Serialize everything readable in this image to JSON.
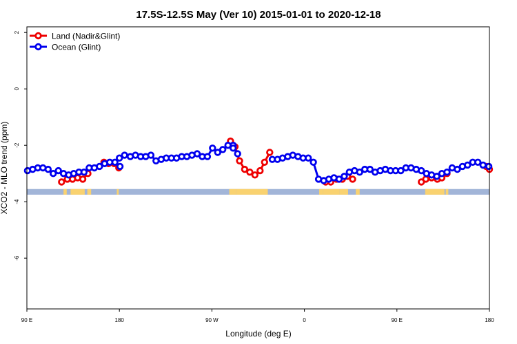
{
  "chart_data": {
    "type": "line",
    "title": "17.5S-12.5S May (Ver 10)   2015-01-01 to 2020-12-18",
    "xlabel": "Longitude (deg E)",
    "ylabel": "XCO2 - MLO trend (ppm)",
    "xlim": [
      90,
      450
    ],
    "ylim": [
      -7.8,
      2.2
    ],
    "x_ticks": [
      {
        "value": 90,
        "label": "90 E"
      },
      {
        "value": 162,
        "label": "180"
      },
      {
        "value": 234,
        "label": "90 W"
      },
      {
        "value": 306,
        "label": "0"
      },
      {
        "value": 378,
        "label": "90 E"
      },
      {
        "value": 450,
        "label": "180"
      }
    ],
    "y_ticks": [
      {
        "value": 2,
        "label": "2"
      },
      {
        "value": 0,
        "label": "0"
      },
      {
        "value": -2,
        "label": "-2"
      },
      {
        "value": -4,
        "label": "-4"
      },
      {
        "value": -6,
        "label": "-6"
      }
    ],
    "legend_position": "top-left",
    "series": [
      {
        "name": "Land (Nadir&Glint)",
        "color": "#ee0000",
        "segments": [
          {
            "x": [
              117.0,
              121.5,
              125.5,
              129.5,
              133.5,
              137.5
            ],
            "y": [
              -3.3,
              -3.2,
              -3.2,
              -3.15,
              -3.2,
              -3.0
            ]
          },
          {
            "x": [
              150.0,
              153.5,
              158.0,
              161.5
            ],
            "y": [
              -2.6,
              -2.65,
              -2.65,
              -2.8
            ]
          },
          {
            "x": [
              248.5,
              252.0,
              255.5,
              259.5,
              263.5,
              267.5,
              271.5,
              275.0,
              279.0
            ],
            "y": [
              -1.85,
              -2.05,
              -2.55,
              -2.85,
              -2.95,
              -3.05,
              -2.9,
              -2.6,
              -2.25
            ]
          },
          {
            "x": [
              322.5,
              326.5,
              331.0,
              335.5,
              339.5,
              343.5
            ],
            "y": [
              -3.3,
              -3.3,
              -3.2,
              -3.2,
              -3.1,
              -3.2
            ]
          },
          {
            "x": [
              397.0,
              400.5,
              405.0,
              409.5,
              413.0,
              417.0
            ],
            "y": [
              -3.3,
              -3.2,
              -3.15,
              -3.2,
              -3.15,
              -3.0
            ]
          },
          {
            "x": [
              447.5,
              450.0
            ],
            "y": [
              -2.75,
              -2.85
            ]
          }
        ]
      },
      {
        "name": "Ocean (Glint)",
        "color": "#0000ee",
        "segments": [
          {
            "x": [
              90.5,
              94.5,
              98.5,
              102.5,
              106.5,
              110.5,
              114.5,
              118.5,
              122.5,
              126.5,
              130.5,
              134.5,
              138.5,
              142.5,
              146.5,
              150.5,
              154.5,
              158.5,
              162.5
            ],
            "y": [
              -2.9,
              -2.85,
              -2.8,
              -2.8,
              -2.85,
              -3.0,
              -2.9,
              -3.0,
              -3.05,
              -3.0,
              -2.95,
              -2.95,
              -2.8,
              -2.8,
              -2.75,
              -2.65,
              -2.6,
              -2.6,
              -2.75
            ]
          },
          {
            "x": [
              162.0,
              166.0,
              170.5,
              174.5,
              178.5,
              182.5,
              186.5,
              190.5,
              194.5,
              198.5,
              202.5,
              206.5,
              210.5,
              214.5,
              218.5,
              222.5,
              226.5,
              230.5,
              234.5,
              238.5,
              242.5,
              246.5,
              250.5
            ],
            "y": [
              -2.45,
              -2.35,
              -2.4,
              -2.35,
              -2.4,
              -2.4,
              -2.35,
              -2.55,
              -2.5,
              -2.45,
              -2.45,
              -2.45,
              -2.4,
              -2.4,
              -2.35,
              -2.3,
              -2.4,
              -2.4,
              -2.1,
              -2.25,
              -2.15,
              -2.0,
              -2.0
            ]
          },
          {
            "x": [
              250.5,
              254.0
            ],
            "y": [
              -2.1,
              -2.3
            ]
          },
          {
            "x": [
              281.0,
              285.0,
              289.0,
              293.0,
              297.0,
              301.0,
              305.0,
              309.0,
              313.0,
              317.0,
              321.0,
              325.0,
              329.0,
              333.0,
              337.0,
              341.0,
              345.0,
              349.0,
              353.0,
              357.0,
              361.0,
              365.0,
              369.0,
              373.0,
              377.0,
              381.0,
              385.0,
              389.0,
              393.0,
              397.0,
              401.0,
              405.0,
              409.0,
              413.0,
              417.0,
              421.0,
              425.0,
              429.0,
              433.0,
              437.0,
              441.0,
              445.0,
              449.5
            ],
            "y": [
              -2.5,
              -2.5,
              -2.45,
              -2.4,
              -2.35,
              -2.4,
              -2.45,
              -2.45,
              -2.6,
              -3.2,
              -3.25,
              -3.2,
              -3.15,
              -3.2,
              -3.1,
              -2.95,
              -2.9,
              -2.95,
              -2.85,
              -2.85,
              -2.95,
              -2.9,
              -2.85,
              -2.9,
              -2.9,
              -2.9,
              -2.8,
              -2.8,
              -2.85,
              -2.9,
              -3.0,
              -3.05,
              -3.1,
              -3.0,
              -2.95,
              -2.8,
              -2.85,
              -2.75,
              -2.7,
              -2.6,
              -2.6,
              -2.7,
              -2.75
            ]
          }
        ]
      }
    ],
    "surface_band": {
      "y_range": [
        -3.55,
        -3.75
      ],
      "ocean_color": "#a2b5d8",
      "land_color": "#f9d270",
      "land_spans": [
        [
          118.5,
          121.0
        ],
        [
          124.0,
          135.0
        ],
        [
          137.0,
          140.0
        ],
        [
          160.0,
          161.5
        ],
        [
          247.5,
          253.0
        ],
        [
          253.0,
          277.5
        ],
        [
          317.5,
          320.5
        ],
        [
          320.5,
          333.5
        ],
        [
          333.5,
          340.0
        ],
        [
          346.0,
          349.0
        ],
        [
          400.0,
          415.0
        ],
        [
          416.0,
          418.0
        ]
      ]
    }
  }
}
